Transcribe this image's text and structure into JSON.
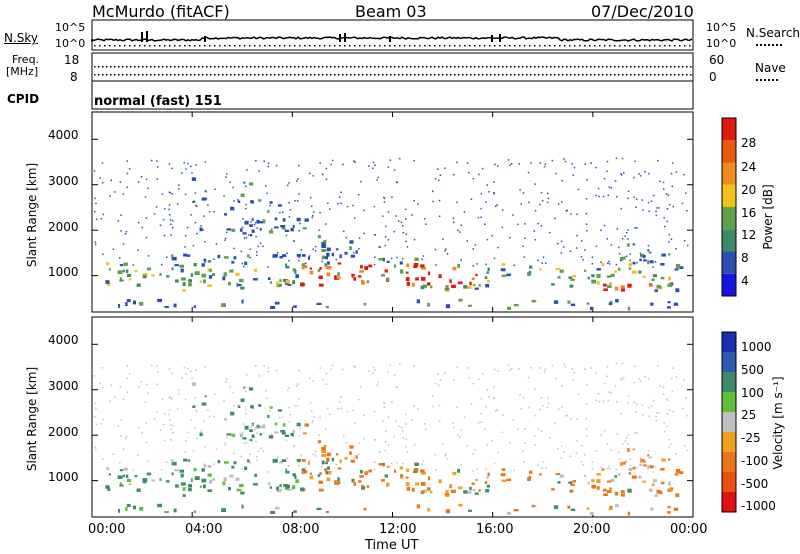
{
  "header": {
    "station": "McMurdo (fitACF)",
    "beam": "Beam 03",
    "date": "07/Dec/2010"
  },
  "aux": {
    "nsky_label": "N.Sky",
    "nsky_ticks": [
      "10^5",
      "10^0"
    ],
    "nsearch_label": "N.Search",
    "freq_label_1": "Freq.",
    "freq_label_2": "[MHz]",
    "freq_ticks": [
      "18",
      "8"
    ],
    "nave_label": "Nave",
    "nave_ticks": [
      "60",
      "0"
    ],
    "cpid_label": "CPID",
    "cpid_value": "normal (fast) 151"
  },
  "chart_data": [
    {
      "type": "heatmap",
      "title": "",
      "ylabel": "Slant Range [km]",
      "yticks": [
        "1000",
        "2000",
        "3000",
        "4000"
      ],
      "ylim": [
        200,
        4600
      ],
      "xlim": [
        "00:00",
        "24:00"
      ],
      "colorbar": {
        "label": "Power [dB]",
        "ticks": [
          "4",
          "8",
          "12",
          "16",
          "20",
          "24",
          "28"
        ]
      }
    },
    {
      "type": "heatmap",
      "title": "",
      "ylabel": "Slant Range [km]",
      "yticks": [
        "1000",
        "2000",
        "3000",
        "4000"
      ],
      "ylim": [
        200,
        4600
      ],
      "xlabel": "Time UT",
      "xticks": [
        "00:00",
        "04:00",
        "08:00",
        "12:00",
        "16:00",
        "20:00",
        "00:00"
      ],
      "xlim": [
        "00:00",
        "24:00"
      ],
      "colorbar": {
        "label": "Velocity [m s⁻¹]",
        "ticks": [
          "1000",
          "500",
          "100",
          "25",
          "-25",
          "-100",
          "-500",
          "-1000"
        ]
      }
    }
  ],
  "colors": {
    "power": [
      "#1616e0",
      "#2a4fb0",
      "#3d8a66",
      "#5fa04c",
      "#f0c21a",
      "#f08a1e",
      "#e85a10",
      "#dd1a10"
    ],
    "velocity": [
      "#1a2fb0",
      "#2a5db0",
      "#3e8a6a",
      "#5fbf3a",
      "#c0c0c0",
      "#f0a020",
      "#e8761a",
      "#e85010",
      "#e01010"
    ]
  }
}
